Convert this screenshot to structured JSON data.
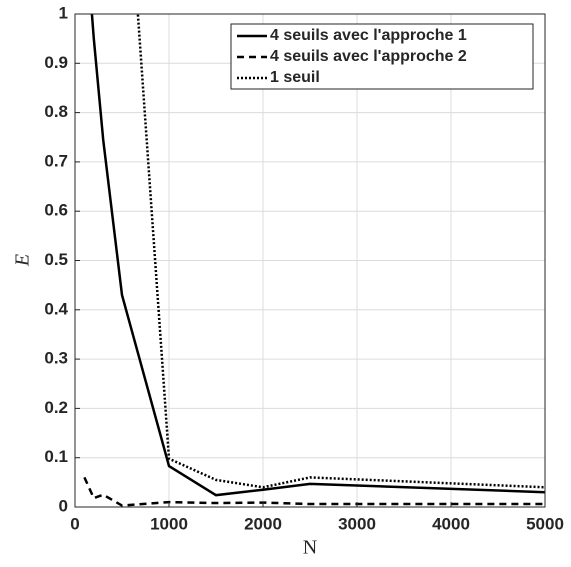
{
  "chart_data": {
    "type": "line",
    "xlabel": "N",
    "ylabel": "E",
    "x": [
      100,
      200,
      300,
      500,
      1000,
      1500,
      2000,
      2500,
      5000
    ],
    "series": [
      {
        "name": "4 seuils avec l'approche 1",
        "color": "#000000",
        "line_style": "solid",
        "values": [
          1.2,
          0.95,
          0.745,
          0.43,
          0.083,
          0.024,
          0.035,
          0.047,
          0.03
        ]
      },
      {
        "name": "4 seuils avec l'approche 2",
        "color": "#000000",
        "line_style": "dashed",
        "values": [
          0.06,
          0.018,
          0.025,
          0.003,
          0.01,
          0.008,
          0.009,
          0.006,
          0.006
        ]
      },
      {
        "name": "1 seuil",
        "color": "#000000",
        "line_style": "dotted",
        "values": [
          null,
          null,
          null,
          1.46,
          0.098,
          0.055,
          0.04,
          0.06,
          0.04
        ]
      }
    ],
    "xlim": [
      0,
      5000
    ],
    "xticks": [
      0,
      1000,
      2000,
      3000,
      4000,
      5000
    ],
    "ylim": [
      0,
      1
    ],
    "yticks": [
      0,
      0.1,
      0.2,
      0.3,
      0.4,
      0.5,
      0.6,
      0.7,
      0.8,
      0.9,
      1
    ],
    "grid": true,
    "legend_position": "top-right"
  }
}
